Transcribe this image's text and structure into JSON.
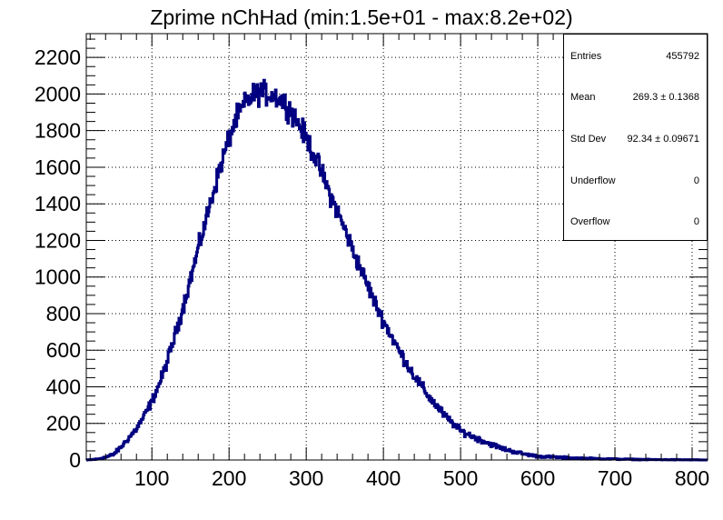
{
  "chart_data": {
    "type": "histogram",
    "title": "Zprime nChHad (min:1.5e+01 - max:8.2e+02)",
    "xlabel": "",
    "ylabel": "",
    "xlim": [
      15,
      820
    ],
    "ylim": [
      0,
      2330
    ],
    "grid": true,
    "xticks": [
      100,
      200,
      300,
      400,
      500,
      600,
      700,
      800
    ],
    "yticks": [
      0,
      200,
      400,
      600,
      800,
      1000,
      1200,
      1400,
      1600,
      1800,
      2000,
      2200
    ],
    "line_color": "#000080",
    "bin_width": 1,
    "profile": [
      [
        15,
        0
      ],
      [
        30,
        5
      ],
      [
        40,
        15
      ],
      [
        50,
        30
      ],
      [
        60,
        70
      ],
      [
        70,
        120
      ],
      [
        80,
        170
      ],
      [
        90,
        240
      ],
      [
        100,
        320
      ],
      [
        110,
        420
      ],
      [
        120,
        540
      ],
      [
        130,
        680
      ],
      [
        140,
        830
      ],
      [
        150,
        990
      ],
      [
        160,
        1150
      ],
      [
        170,
        1310
      ],
      [
        180,
        1470
      ],
      [
        190,
        1620
      ],
      [
        200,
        1760
      ],
      [
        210,
        1870
      ],
      [
        220,
        1940
      ],
      [
        230,
        1990
      ],
      [
        240,
        2010
      ],
      [
        250,
        2000
      ],
      [
        260,
        1990
      ],
      [
        270,
        1960
      ],
      [
        280,
        1910
      ],
      [
        290,
        1840
      ],
      [
        300,
        1760
      ],
      [
        310,
        1670
      ],
      [
        320,
        1570
      ],
      [
        330,
        1460
      ],
      [
        340,
        1360
      ],
      [
        350,
        1260
      ],
      [
        360,
        1150
      ],
      [
        370,
        1050
      ],
      [
        380,
        950
      ],
      [
        390,
        850
      ],
      [
        400,
        760
      ],
      [
        410,
        680
      ],
      [
        420,
        600
      ],
      [
        430,
        530
      ],
      [
        440,
        460
      ],
      [
        450,
        400
      ],
      [
        460,
        340
      ],
      [
        470,
        290
      ],
      [
        480,
        240
      ],
      [
        490,
        200
      ],
      [
        500,
        160
      ],
      [
        520,
        120
      ],
      [
        540,
        85
      ],
      [
        560,
        55
      ],
      [
        580,
        35
      ],
      [
        600,
        20
      ],
      [
        650,
        10
      ],
      [
        700,
        5
      ],
      [
        750,
        2
      ],
      [
        800,
        1
      ],
      [
        820,
        0
      ]
    ],
    "stats": [
      {
        "label": "Entries",
        "value": "455792"
      },
      {
        "label": "Mean",
        "value": "269.3 ± 0.1368"
      },
      {
        "label": "Std Dev",
        "value": "92.34 ± 0.09671"
      },
      {
        "label": "Underflow",
        "value": "0"
      },
      {
        "label": "Overflow",
        "value": "0"
      }
    ]
  }
}
